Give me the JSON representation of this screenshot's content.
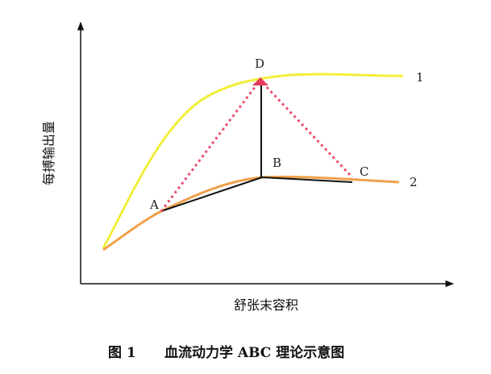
{
  "axes": {
    "y_label": "每搏输出量",
    "x_label": "舒张末容积"
  },
  "nodes": [
    {
      "label": "A"
    },
    {
      "label": "B"
    },
    {
      "label": "C"
    },
    {
      "label": "D"
    }
  ],
  "curves": [
    {
      "label": "1"
    },
    {
      "label": "2"
    }
  ],
  "caption": {
    "figure": "图 1",
    "text": "血流动力学 ABC 理论示意图"
  }
}
